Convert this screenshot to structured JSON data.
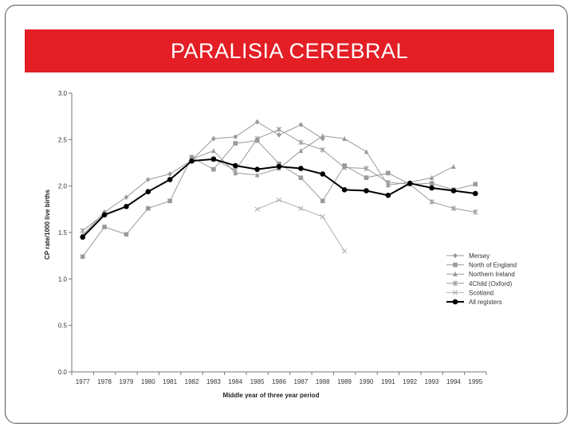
{
  "slide": {
    "title": "PARALISIA CEREBRAL"
  },
  "chart_data": {
    "type": "line",
    "title": "",
    "xlabel": "Middle year of three year period",
    "ylabel": "CP rate/1000 live births",
    "ylim": [
      0,
      3.0
    ],
    "yticks": [
      "0.0",
      "0.5",
      "1.0",
      "1.5",
      "2.0",
      "2.5",
      "3.0"
    ],
    "categories": [
      "1977",
      "1978",
      "1979",
      "1980",
      "1981",
      "1982",
      "1983",
      "1984",
      "1985",
      "1986",
      "1987",
      "1988",
      "1989",
      "1990",
      "1991",
      "1992",
      "1993",
      "1994",
      "1995"
    ],
    "legend_position": "right",
    "grid": false,
    "series": [
      {
        "name": "Mersey",
        "marker": "diamond",
        "color": "#9a9a9a",
        "values": [
          1.47,
          1.72,
          1.88,
          2.07,
          2.13,
          2.28,
          2.51,
          2.53,
          2.69,
          2.55,
          2.66,
          2.51,
          null,
          null,
          null,
          null,
          null,
          null,
          null
        ]
      },
      {
        "name": "North of England",
        "marker": "square",
        "color": "#9a9a9a",
        "values": [
          1.24,
          1.56,
          1.48,
          1.76,
          1.84,
          2.31,
          2.18,
          2.46,
          2.49,
          2.24,
          2.09,
          1.84,
          2.22,
          2.09,
          2.14,
          2.02,
          2.03,
          1.96,
          2.02
        ]
      },
      {
        "name": "Northern Ireland",
        "marker": "triangle",
        "color": "#9a9a9a",
        "values": [
          null,
          null,
          null,
          null,
          null,
          2.29,
          2.38,
          2.14,
          2.12,
          2.19,
          2.38,
          2.54,
          2.51,
          2.37,
          2.01,
          2.04,
          2.09,
          2.21,
          null
        ]
      },
      {
        "name": "4Child (Oxford)",
        "marker": "star",
        "color": "#9a9a9a",
        "values": [
          1.52,
          1.7,
          null,
          null,
          null,
          2.27,
          2.29,
          2.17,
          2.51,
          2.61,
          2.47,
          2.39,
          2.2,
          2.19,
          2.04,
          2.02,
          1.83,
          1.76,
          1.72
        ]
      },
      {
        "name": "Scotland",
        "marker": "x",
        "color": "#b0b0b0",
        "values": [
          null,
          null,
          null,
          null,
          null,
          null,
          null,
          null,
          1.75,
          1.85,
          1.76,
          1.67,
          1.3,
          null,
          null,
          null,
          null,
          null,
          null
        ]
      },
      {
        "name": "All registers",
        "marker": "circle",
        "color": "#000000",
        "values": [
          1.45,
          1.69,
          1.78,
          1.94,
          2.07,
          2.27,
          2.29,
          2.22,
          2.18,
          2.21,
          2.19,
          2.13,
          1.96,
          1.95,
          1.9,
          2.03,
          1.98,
          1.95,
          1.92
        ]
      }
    ]
  }
}
